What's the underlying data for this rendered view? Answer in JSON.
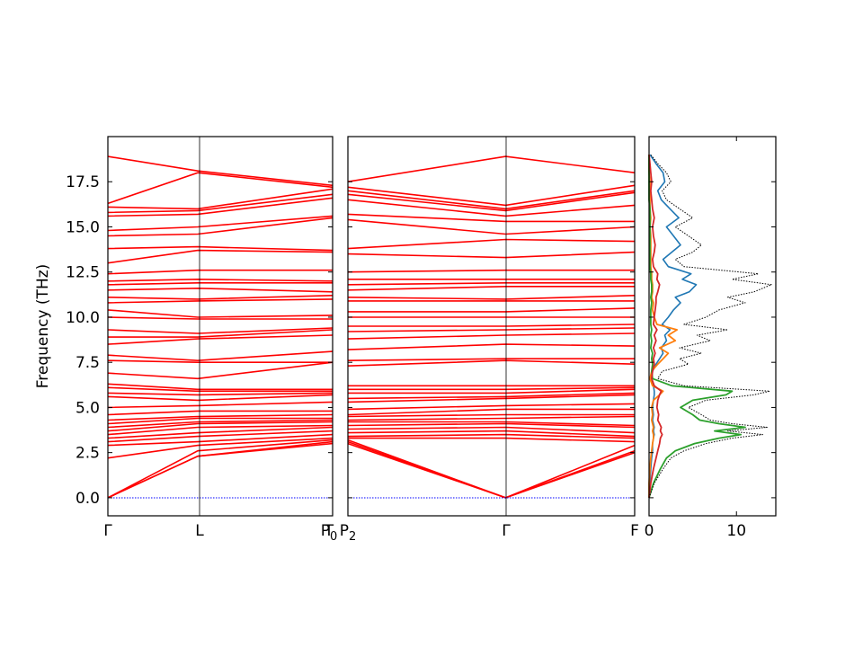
{
  "colors": {
    "bands": "#ff0000",
    "zero_line": "#0000ff",
    "dos_total": "#000000",
    "dos_blue": "#1f77b4",
    "dos_orange": "#ff7f0e",
    "dos_green": "#2ca02c",
    "dos_red": "#d62728"
  },
  "chart_data": [
    {
      "type": "line",
      "panel": "band-structure-left",
      "ylabel": "Frequency (THz)",
      "ylim": [
        -1.0,
        20.0
      ],
      "yticks": [
        0.0,
        2.5,
        5.0,
        7.5,
        10.0,
        12.5,
        15.0,
        17.5
      ],
      "ytick_labels": [
        "0.0",
        "2.5",
        "5.0",
        "7.5",
        "10.0",
        "12.5",
        "15.0",
        "17.5"
      ],
      "x_points": [
        0,
        0.4,
        1.0
      ],
      "x_labels": [
        "Γ",
        "L",
        "T"
      ],
      "segment_end_label": "P",
      "segment_end_subscript": "0",
      "series_start": [
        0,
        0,
        0,
        2.2,
        2.9,
        3.1,
        3.3,
        3.5,
        3.7,
        3.9,
        4.1,
        4.3,
        4.6,
        5.0,
        5.6,
        5.8,
        6.1,
        6.3,
        6.9,
        7.6,
        7.9,
        8.5,
        8.9,
        9.3,
        10.0,
        10.4,
        10.8,
        11.1,
        11.5,
        11.8,
        12.0,
        12.4,
        13.0,
        13.8,
        14.5,
        14.8,
        15.6,
        15.8,
        16.1,
        16.3,
        18.9
      ],
      "series_mid": [
        2.3,
        2.3,
        2.6,
        2.9,
        3.1,
        3.4,
        3.6,
        3.9,
        4.1,
        4.2,
        4.4,
        4.5,
        4.8,
        5.1,
        5.4,
        5.7,
        5.9,
        6.0,
        6.6,
        7.5,
        7.6,
        8.8,
        8.9,
        9.1,
        9.9,
        10.0,
        10.9,
        11.0,
        11.6,
        11.9,
        12.1,
        12.6,
        13.7,
        13.9,
        14.6,
        15.0,
        15.7,
        15.9,
        16.0,
        18.0,
        18.1
      ],
      "series_end": [
        3.0,
        3.1,
        3.2,
        3.3,
        3.5,
        3.7,
        3.9,
        4.0,
        4.2,
        4.3,
        4.4,
        4.6,
        4.8,
        5.3,
        5.7,
        5.8,
        5.9,
        6.0,
        7.5,
        7.5,
        8.1,
        9.0,
        9.3,
        9.4,
        9.9,
        10.1,
        11.0,
        11.2,
        11.4,
        11.9,
        12.0,
        12.6,
        13.6,
        13.7,
        15.5,
        15.6,
        16.6,
        16.8,
        17.1,
        17.2,
        17.3
      ]
    },
    {
      "type": "line",
      "panel": "band-structure-right",
      "ylim": [
        -1.0,
        20.0
      ],
      "x_points": [
        0,
        0.55,
        1.0
      ],
      "x_labels": [
        "",
        "Γ",
        "F"
      ],
      "segment_start_label": "P",
      "segment_start_subscript": "2",
      "series_start": [
        3.0,
        3.1,
        3.2,
        3.3,
        3.4,
        3.6,
        3.8,
        4.0,
        4.2,
        4.3,
        4.5,
        4.6,
        4.9,
        5.3,
        5.5,
        5.8,
        6.0,
        6.2,
        7.3,
        7.6,
        8.2,
        8.8,
        9.2,
        9.5,
        10.0,
        10.3,
        10.9,
        11.1,
        11.5,
        11.8,
        12.1,
        12.5,
        13.5,
        13.8,
        15.4,
        15.7,
        16.5,
        16.8,
        17.0,
        17.2,
        17.5
      ],
      "series_mid": [
        0,
        0,
        0,
        3.3,
        3.5,
        3.7,
        3.9,
        4.1,
        4.2,
        4.4,
        4.6,
        4.9,
        5.1,
        5.5,
        5.6,
        5.8,
        6.0,
        6.2,
        7.6,
        7.7,
        8.5,
        9.0,
        9.3,
        9.5,
        10.0,
        10.3,
        10.9,
        11.0,
        11.7,
        11.9,
        12.1,
        12.6,
        13.3,
        14.3,
        14.6,
        15.3,
        15.6,
        15.9,
        16.0,
        16.2,
        18.9
      ],
      "series_end": [
        2.5,
        2.6,
        2.9,
        3.1,
        3.3,
        3.4,
        3.6,
        3.9,
        4.0,
        4.5,
        4.6,
        4.9,
        5.2,
        5.7,
        5.8,
        6.0,
        6.1,
        6.2,
        7.4,
        7.7,
        8.4,
        9.1,
        9.4,
        9.6,
        10.0,
        10.5,
        10.9,
        11.2,
        11.7,
        11.9,
        12.1,
        12.6,
        13.6,
        14.2,
        15.0,
        15.3,
        16.2,
        16.9,
        17.0,
        17.3,
        18.0
      ]
    },
    {
      "type": "line",
      "panel": "dos",
      "ylim": [
        -1.0,
        20.0
      ],
      "xlim": [
        0,
        14.5
      ],
      "xticks": [
        0,
        10
      ],
      "xtick_labels": [
        "0",
        "10"
      ],
      "frequency": [
        0.0,
        0.8,
        1.6,
        2.2,
        2.6,
        3.0,
        3.3,
        3.5,
        3.7,
        3.9,
        4.1,
        4.3,
        4.6,
        5.0,
        5.4,
        5.7,
        5.9,
        6.2,
        6.6,
        7.0,
        7.4,
        7.7,
        8.0,
        8.3,
        8.7,
        9.0,
        9.3,
        9.6,
        10.0,
        10.4,
        10.8,
        11.1,
        11.4,
        11.8,
        12.1,
        12.4,
        12.8,
        13.2,
        13.6,
        14.0,
        14.5,
        15.0,
        15.5,
        16.0,
        16.5,
        17.0,
        17.5,
        18.0,
        18.5,
        19.0
      ],
      "series": [
        {
          "values": [
            0.0,
            0.6,
            1.6,
            2.5,
            4.0,
            6.5,
            9.5,
            13.0,
            9.0,
            13.5,
            9.5,
            7.0,
            6.0,
            4.5,
            6.5,
            12.0,
            13.8,
            4.0,
            1.0,
            1.5,
            4.5,
            3.5,
            6.0,
            3.5,
            7.0,
            5.5,
            9.0,
            4.0,
            6.5,
            8.0,
            11.0,
            9.0,
            12.0,
            14.0,
            9.5,
            12.5,
            4.0,
            3.0,
            5.0,
            6.0,
            4.5,
            3.0,
            5.0,
            3.5,
            2.0,
            1.5,
            2.5,
            2.0,
            1.0,
            0.2
          ]
        },
        {
          "values": [
            0.0,
            0.1,
            0.2,
            0.3,
            0.4,
            0.4,
            0.5,
            0.6,
            0.5,
            0.6,
            0.5,
            0.4,
            0.5,
            0.4,
            0.5,
            0.6,
            0.6,
            0.5,
            0.3,
            0.4,
            0.8,
            1.2,
            1.6,
            1.4,
            2.0,
            1.8,
            2.4,
            1.5,
            2.2,
            2.8,
            3.6,
            3.0,
            4.6,
            5.4,
            3.8,
            4.8,
            2.2,
            1.6,
            2.6,
            3.6,
            2.8,
            2.0,
            3.4,
            2.4,
            1.4,
            1.0,
            1.8,
            1.6,
            0.8,
            0.1
          ]
        },
        {
          "values": [
            0.0,
            0.0,
            0.1,
            0.2,
            0.3,
            0.4,
            0.5,
            0.5,
            0.4,
            0.5,
            0.4,
            0.3,
            0.4,
            0.3,
            0.5,
            1.2,
            1.6,
            0.4,
            0.1,
            0.3,
            1.0,
            1.6,
            2.2,
            1.2,
            3.0,
            2.2,
            3.2,
            0.9,
            0.6,
            0.4,
            0.5,
            0.3,
            0.4,
            0.4,
            0.3,
            0.3,
            0.2,
            0.2,
            0.2,
            0.2,
            0.2,
            0.1,
            0.2,
            0.1,
            0.1,
            0.1,
            0.1,
            0.0,
            0.0,
            0.0
          ]
        },
        {
          "values": [
            0.0,
            0.5,
            1.3,
            2.0,
            3.0,
            5.2,
            8.0,
            10.5,
            7.5,
            11.0,
            8.0,
            5.8,
            5.0,
            3.6,
            5.0,
            8.8,
            9.5,
            2.6,
            0.4,
            0.3,
            0.4,
            0.3,
            0.4,
            0.2,
            0.3,
            0.2,
            0.3,
            0.2,
            0.2,
            0.2,
            0.3,
            0.2,
            0.3,
            0.3,
            0.2,
            0.2,
            0.1,
            0.1,
            0.1,
            0.1,
            0.1,
            0.1,
            0.1,
            0.1,
            0.0,
            0.0,
            0.0,
            0.0,
            0.0,
            0.0
          ]
        },
        {
          "values": [
            0.0,
            0.2,
            0.5,
            0.8,
            1.0,
            1.2,
            1.3,
            1.5,
            1.3,
            1.4,
            1.2,
            1.0,
            1.1,
            0.9,
            1.0,
            1.2,
            1.4,
            0.6,
            0.3,
            0.4,
            0.6,
            0.5,
            0.7,
            0.5,
            0.8,
            0.6,
            0.9,
            0.5,
            0.6,
            0.7,
            0.8,
            0.8,
            1.0,
            1.2,
            0.9,
            1.0,
            0.5,
            0.4,
            0.6,
            0.7,
            0.5,
            0.4,
            0.6,
            0.4,
            0.3,
            0.2,
            0.3,
            0.2,
            0.1,
            0.0
          ]
        }
      ]
    }
  ]
}
